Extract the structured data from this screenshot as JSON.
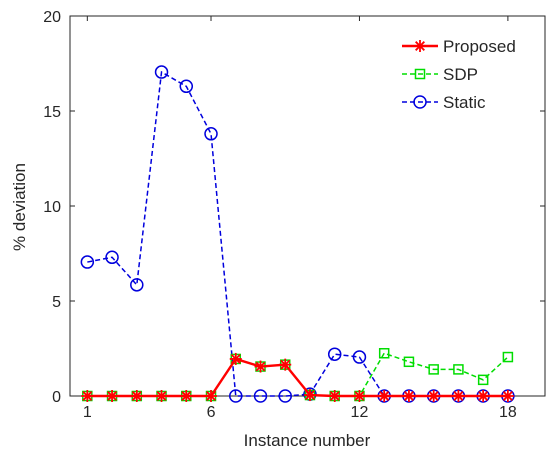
{
  "chart_data": {
    "type": "line",
    "title": "",
    "xlabel": "Instance number",
    "ylabel": "% deviation",
    "xlim": [
      0.3,
      19.5
    ],
    "ylim": [
      0,
      20
    ],
    "x": [
      1,
      2,
      3,
      4,
      5,
      6,
      7,
      8,
      9,
      10,
      11,
      12,
      13,
      14,
      15,
      16,
      17,
      18
    ],
    "xticks": [
      1,
      6,
      12,
      18
    ],
    "yticks": [
      0,
      5,
      10,
      15,
      20
    ],
    "grid": false,
    "legend_position": "top-right",
    "series": [
      {
        "name": "Proposed",
        "color": "#ff0000",
        "marker": "asterisk",
        "line_style": "solid",
        "values": [
          0,
          0,
          0,
          0,
          0,
          0,
          1.95,
          1.55,
          1.65,
          0.05,
          0,
          0,
          0,
          0,
          0,
          0,
          0,
          0
        ]
      },
      {
        "name": "SDP",
        "color": "#00dd00",
        "marker": "square",
        "line_style": "dashed",
        "values": [
          0,
          0,
          0,
          0,
          0,
          0,
          1.95,
          1.55,
          1.65,
          0.05,
          0,
          0,
          2.25,
          1.8,
          1.4,
          1.4,
          0.85,
          2.05
        ]
      },
      {
        "name": "Static",
        "color": "#0000dd",
        "marker": "circle",
        "line_style": "dashed",
        "values": [
          7.05,
          7.3,
          5.85,
          17.05,
          16.3,
          13.8,
          0,
          0,
          0,
          0.1,
          2.2,
          2.05,
          0,
          0,
          0,
          0,
          0,
          0
        ]
      }
    ]
  }
}
